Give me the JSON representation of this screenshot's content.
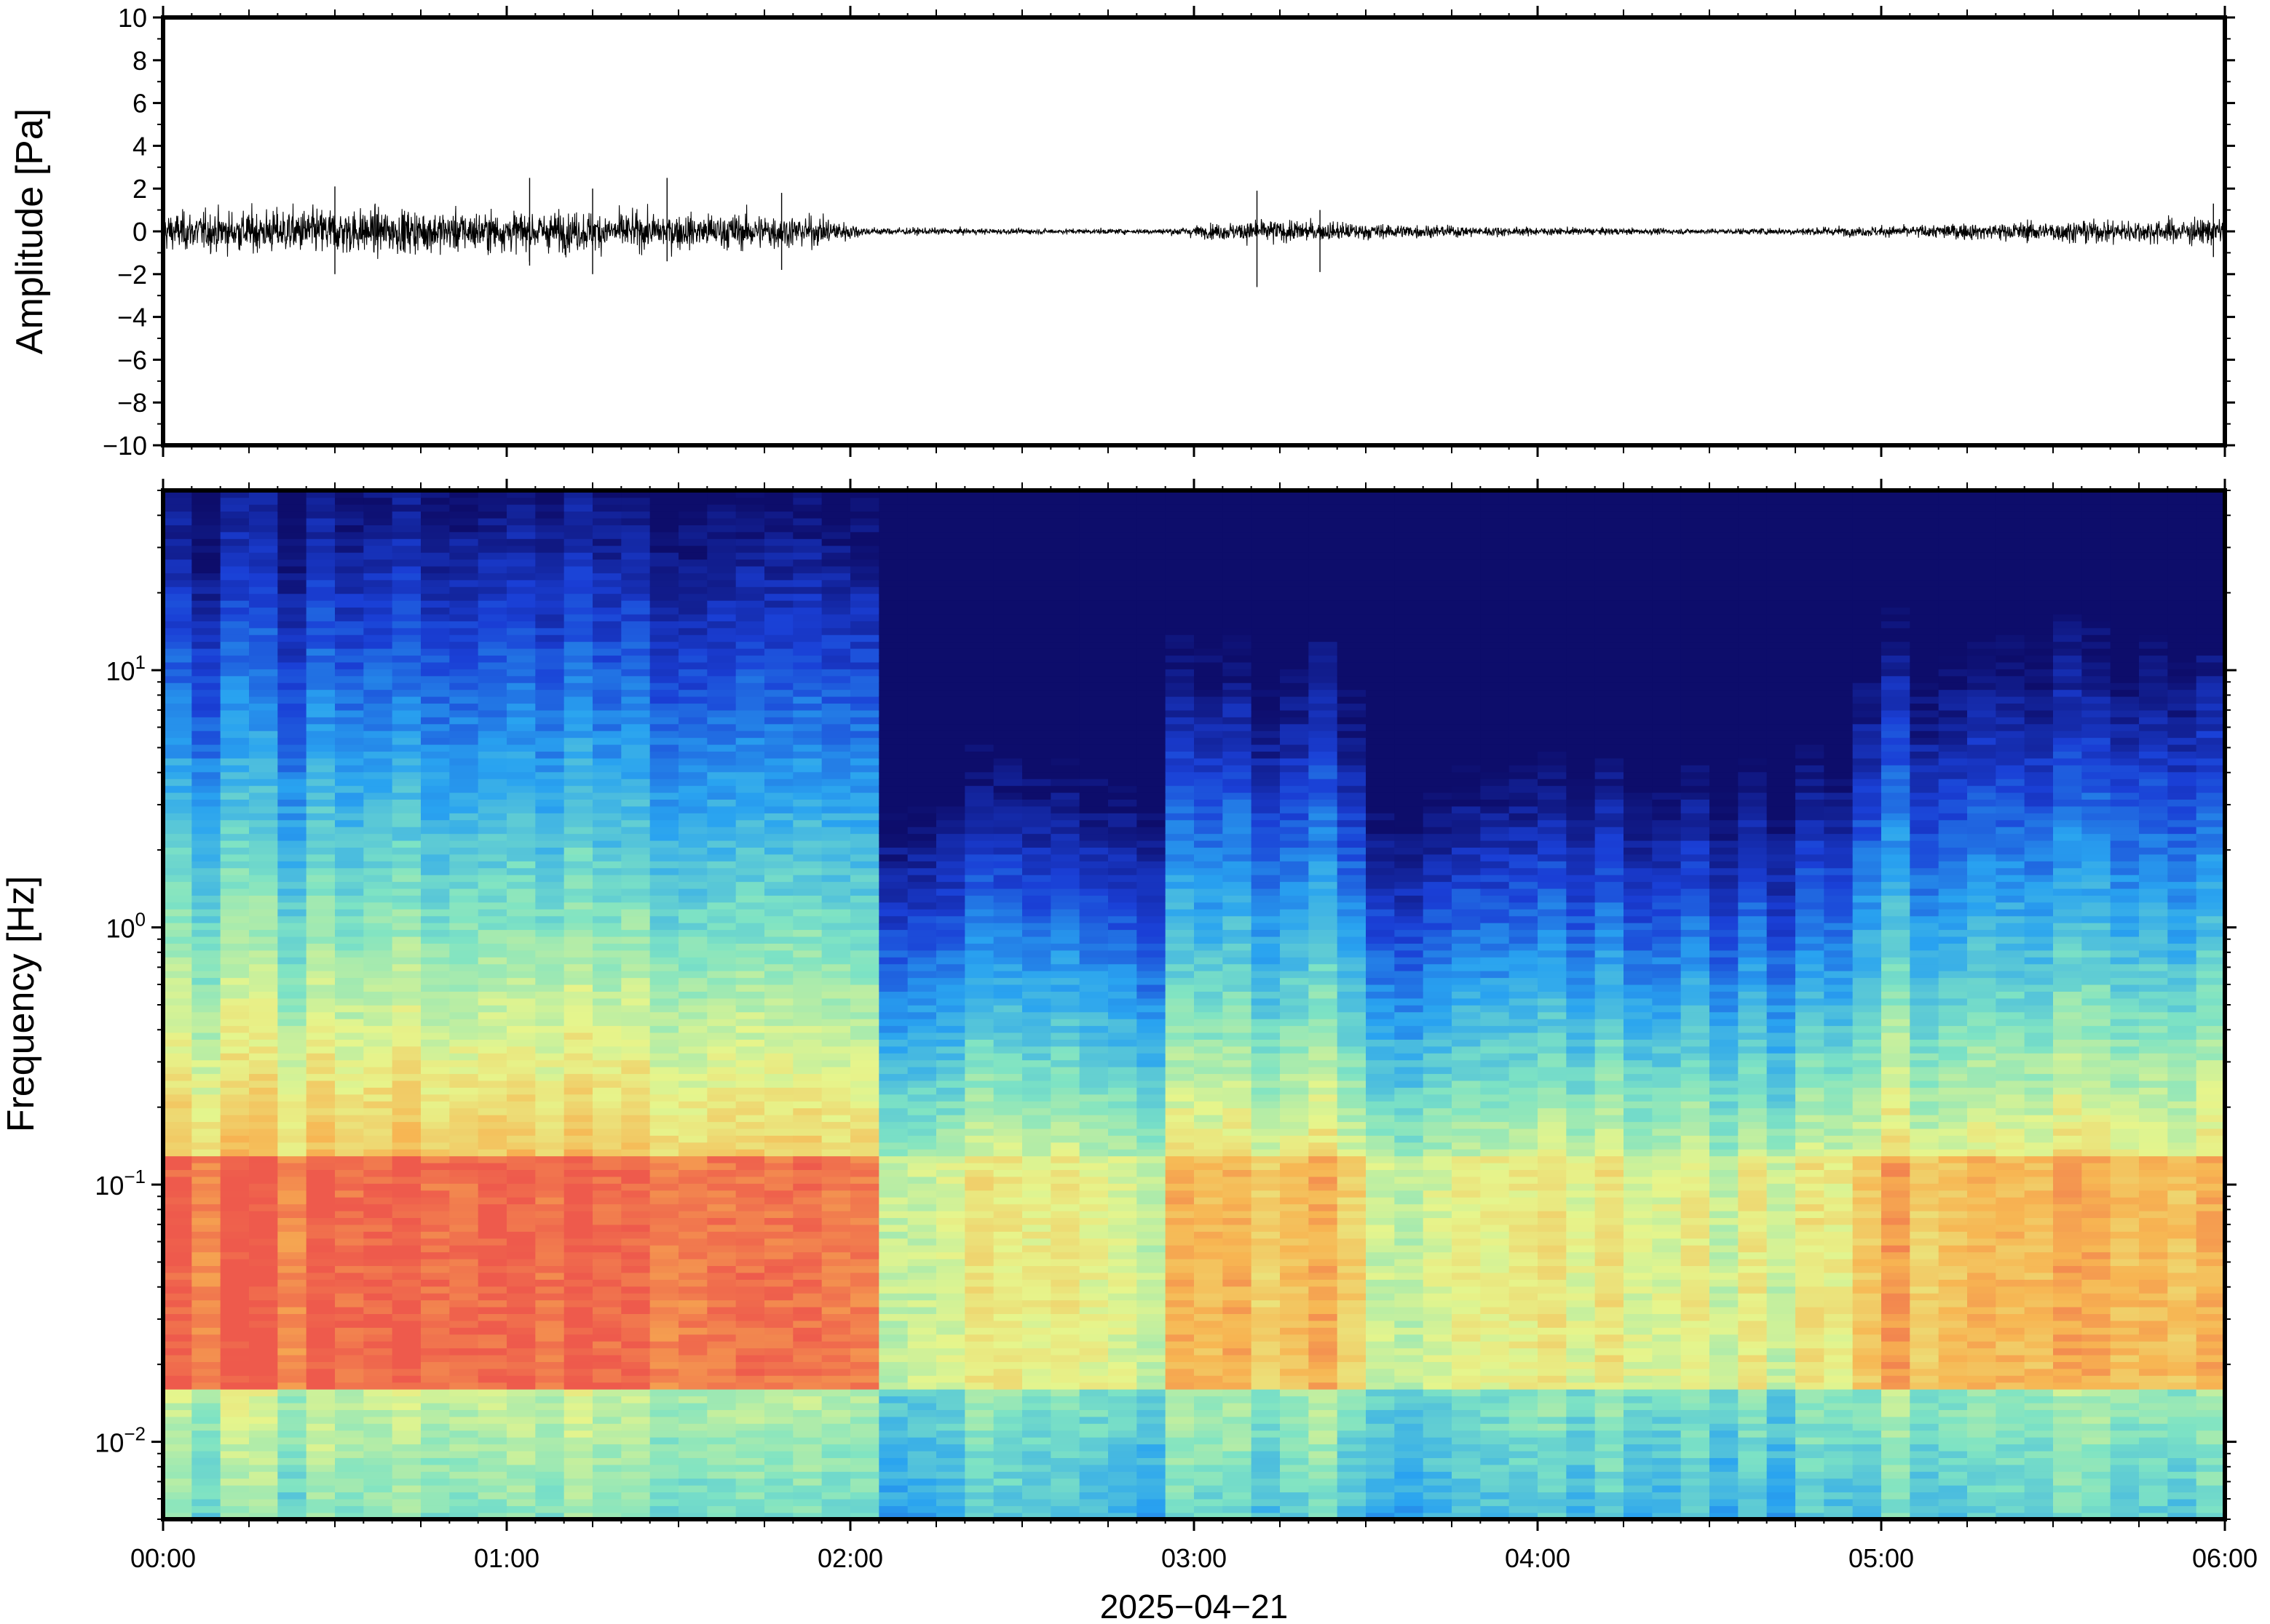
{
  "chart_data": [
    {
      "type": "line",
      "panel": "waveform",
      "ylabel": "Amplitude [Pa]",
      "ylim": [
        -10,
        10
      ],
      "yticks": [
        10,
        8,
        6,
        4,
        2,
        0,
        -2,
        -4,
        -6,
        -8,
        -10
      ],
      "ytick_labels": [
        "10",
        "8",
        "6",
        "4",
        "2",
        "0",
        "−2",
        "−4",
        "−6",
        "−8",
        "−10"
      ],
      "xlim": [
        "00:00",
        "06:00"
      ],
      "envelope": {
        "time_hours": [
          0.0,
          0.25,
          0.5,
          0.75,
          1.0,
          1.25,
          1.5,
          1.75,
          1.95,
          2.05,
          2.5,
          2.9,
          3.2,
          3.5,
          3.8,
          4.0,
          4.5,
          5.0,
          5.5,
          6.0
        ],
        "amplitude_pa": [
          1.4,
          1.6,
          1.8,
          1.6,
          1.5,
          1.5,
          1.3,
          1.4,
          1.0,
          0.3,
          0.2,
          0.2,
          0.9,
          0.6,
          0.4,
          0.3,
          0.2,
          0.4,
          0.8,
          1.0
        ]
      },
      "peaks": [
        {
          "time": "00:30",
          "min": -2.0,
          "max": 2.1
        },
        {
          "time": "01:04",
          "min": -1.6,
          "max": 2.5
        },
        {
          "time": "01:15",
          "min": -2.0,
          "max": 2.0
        },
        {
          "time": "01:28",
          "min": -1.4,
          "max": 2.5
        },
        {
          "time": "01:48",
          "min": -1.8,
          "max": 1.8
        },
        {
          "time": "03:11",
          "min": -2.6,
          "max": 1.9
        },
        {
          "time": "03:22",
          "min": -1.9,
          "max": 1.0
        },
        {
          "time": "05:58",
          "min": -1.2,
          "max": 1.3
        }
      ]
    },
    {
      "type": "heatmap",
      "panel": "spectrogram",
      "ylabel": "Frequency [Hz]",
      "yscale": "log",
      "ylim": [
        0.005,
        50
      ],
      "ytick_labels": [
        {
          "base": "10",
          "exp": "1",
          "value": 10
        },
        {
          "base": "10",
          "exp": "0",
          "value": 1
        },
        {
          "base": "10",
          "exp": "−1",
          "value": 0.1
        },
        {
          "base": "10",
          "exp": "−2",
          "value": 0.01
        }
      ],
      "xlabel": "2025−04−21",
      "xticks": [
        "00:00",
        "01:00",
        "02:00",
        "03:00",
        "04:00",
        "05:00",
        "06:00"
      ],
      "colormap": "jet",
      "colormap_colors": [
        "#0d0d6b",
        "#1a3fd6",
        "#29a3f0",
        "#7ee3c4",
        "#e6f58c",
        "#f7b552",
        "#ee5a4c"
      ],
      "description_columns": 72,
      "regimes": [
        {
          "start_hour": 0.0,
          "end_hour": 2.05,
          "level": "high"
        },
        {
          "start_hour": 2.05,
          "end_hour": 2.95,
          "level": "low"
        },
        {
          "start_hour": 2.95,
          "end_hour": 3.5,
          "level": "medium"
        },
        {
          "start_hour": 3.5,
          "end_hour": 4.9,
          "level": "low"
        },
        {
          "start_hour": 4.9,
          "end_hour": 6.0,
          "level": "medium-high"
        }
      ]
    }
  ]
}
